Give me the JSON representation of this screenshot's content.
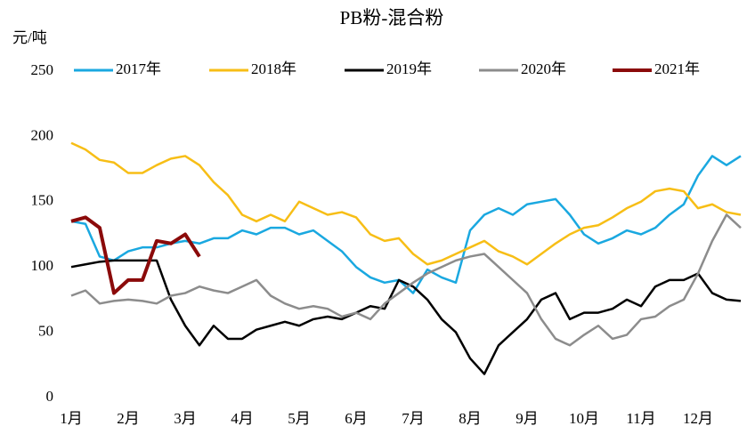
{
  "chart_data": {
    "type": "line",
    "title": "PB粉-混合粉",
    "y_label": "元/吨",
    "categories": [
      "1月",
      null,
      null,
      null,
      "2月",
      null,
      null,
      null,
      "3月",
      null,
      null,
      null,
      "4月",
      null,
      null,
      null,
      "5月",
      null,
      null,
      null,
      "6月",
      null,
      null,
      null,
      "7月",
      null,
      null,
      null,
      "8月",
      null,
      null,
      null,
      "9月",
      null,
      null,
      null,
      "10月",
      null,
      null,
      null,
      "11月",
      null,
      null,
      null,
      "12月",
      null,
      null,
      null
    ],
    "ylim": [
      0,
      250
    ],
    "yticks": [
      0,
      50,
      100,
      150,
      200,
      250
    ],
    "grid": false,
    "legend": "top",
    "series": [
      {
        "name": "2017年",
        "color": "#1aa8e0",
        "values": [
          135,
          133,
          108,
          105,
          112,
          115,
          115,
          118,
          120,
          118,
          122,
          122,
          128,
          125,
          130,
          130,
          125,
          128,
          120,
          112,
          100,
          92,
          88,
          90,
          80,
          98,
          92,
          88,
          128,
          140,
          145,
          140,
          148,
          150,
          152,
          140,
          125,
          118,
          122,
          128,
          125,
          130,
          140,
          148,
          170,
          185,
          178,
          185
        ]
      },
      {
        "name": "2018年",
        "color": "#f7be16",
        "values": [
          195,
          190,
          182,
          180,
          172,
          172,
          178,
          183,
          185,
          178,
          165,
          155,
          140,
          135,
          140,
          135,
          150,
          145,
          140,
          142,
          138,
          125,
          120,
          122,
          110,
          102,
          105,
          110,
          115,
          120,
          112,
          108,
          102,
          110,
          118,
          125,
          130,
          132,
          138,
          145,
          150,
          158,
          160,
          158,
          145,
          148,
          142,
          140
        ]
      },
      {
        "name": "2019年",
        "color": "#000000",
        "values": [
          100,
          102,
          104,
          105,
          105,
          105,
          105,
          75,
          55,
          40,
          55,
          45,
          45,
          52,
          55,
          58,
          55,
          60,
          62,
          60,
          65,
          70,
          68,
          90,
          85,
          75,
          60,
          50,
          30,
          18,
          40,
          50,
          60,
          75,
          80,
          60,
          65,
          65,
          68,
          75,
          70,
          85,
          90,
          90,
          95,
          80,
          75,
          74
        ]
      },
      {
        "name": "2020年",
        "color": "#8c8c8c",
        "values": [
          78,
          82,
          72,
          74,
          75,
          74,
          72,
          78,
          80,
          85,
          82,
          80,
          85,
          90,
          78,
          72,
          68,
          70,
          68,
          62,
          65,
          60,
          72,
          80,
          88,
          95,
          100,
          105,
          108,
          110,
          100,
          90,
          80,
          60,
          45,
          40,
          48,
          55,
          45,
          48,
          60,
          62,
          70,
          75,
          95,
          120,
          140,
          130
        ]
      },
      {
        "name": "2021年",
        "color": "#8b0a0a",
        "values": [
          135,
          138,
          130,
          80,
          90,
          90,
          120,
          118,
          125,
          108,
          null,
          null,
          null,
          null,
          null,
          null,
          null,
          null,
          null,
          null,
          null,
          null,
          null,
          null,
          null,
          null,
          null,
          null,
          null,
          null,
          null,
          null,
          null,
          null,
          null,
          null,
          null,
          null,
          null,
          null,
          null,
          null,
          null,
          null,
          null,
          null,
          null,
          null
        ]
      }
    ]
  }
}
